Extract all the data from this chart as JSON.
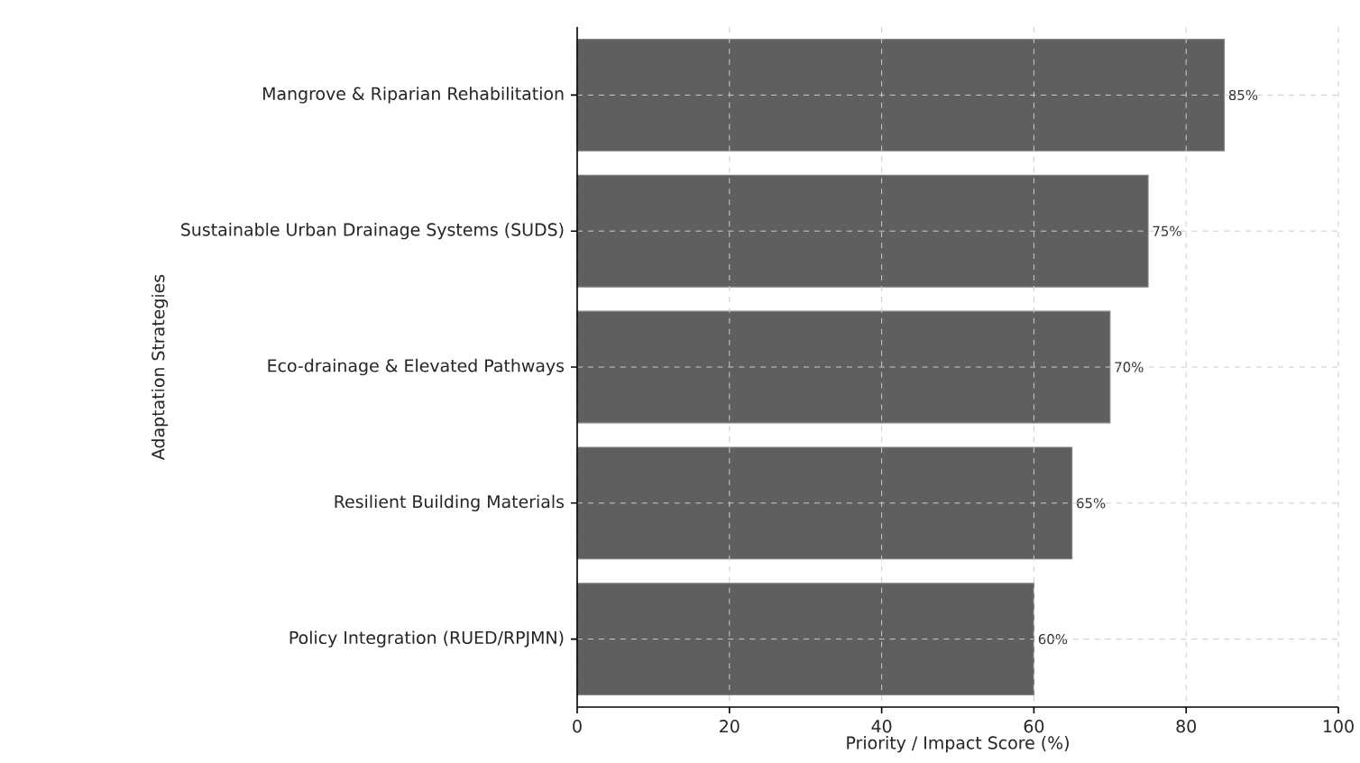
{
  "chart_data": {
    "type": "bar",
    "orientation": "horizontal",
    "xlabel": "Priority / Impact Score (%)",
    "ylabel": "Adaptation Strategies",
    "categories": [
      "Mangrove & Riparian Rehabilitation",
      "Sustainable Urban Drainage Systems (SUDS)",
      "Eco-drainage & Elevated Pathways",
      "Resilient Building Materials",
      "Policy Integration (RUED/RPJMN)"
    ],
    "values": [
      85,
      75,
      70,
      65,
      60
    ],
    "value_labels": [
      "85%",
      "75%",
      "70%",
      "65%",
      "60%"
    ],
    "color": "#5f5f5f",
    "xlim": [
      0,
      100
    ],
    "xticks": [
      0,
      20,
      40,
      60,
      80,
      100
    ],
    "grid": true
  }
}
